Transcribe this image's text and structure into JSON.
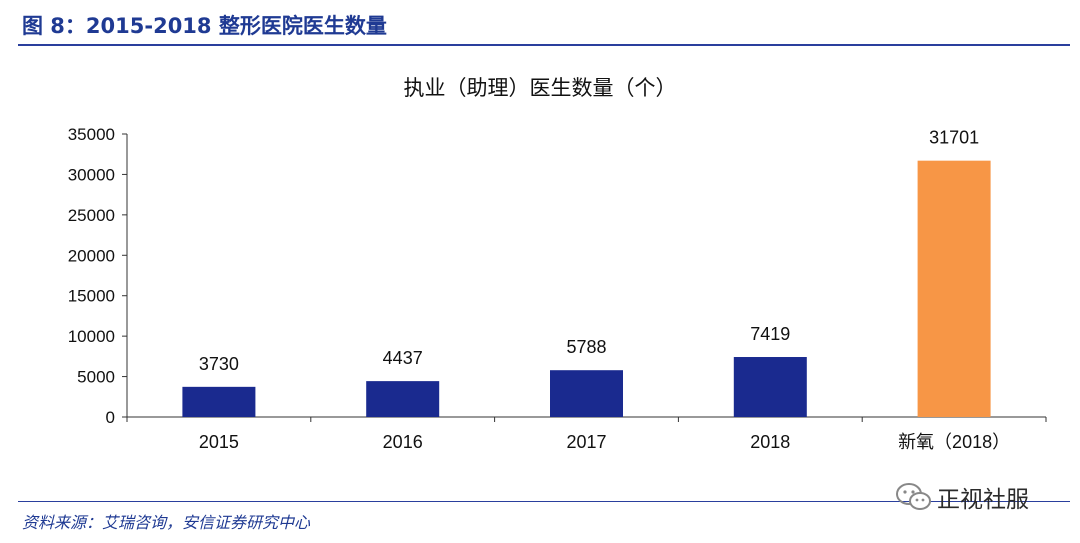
{
  "figure": {
    "title": "图 8：2015-2018 整形医院医生数量",
    "source": "资料来源：艾瑞咨询，安信证券研究中心",
    "watermark": "正视社服"
  },
  "chart_data": {
    "type": "bar",
    "title": "执业（助理）医生数量（个）",
    "categories": [
      "2015",
      "2016",
      "2017",
      "2018",
      "新氧（2018）"
    ],
    "values": [
      3730,
      4437,
      5788,
      7419,
      31701
    ],
    "data_labels": [
      "3730",
      "4437",
      "5788",
      "7419",
      "31701"
    ],
    "bar_colors": [
      "#1a2a8f",
      "#1a2a8f",
      "#1a2a8f",
      "#1a2a8f",
      "#f79646"
    ],
    "ylim": [
      0,
      35000
    ],
    "yticks": [
      "0",
      "5000",
      "10000",
      "15000",
      "20000",
      "25000",
      "30000",
      "35000"
    ],
    "xlabel": "",
    "ylabel": "",
    "grid": false,
    "legend": "none"
  }
}
